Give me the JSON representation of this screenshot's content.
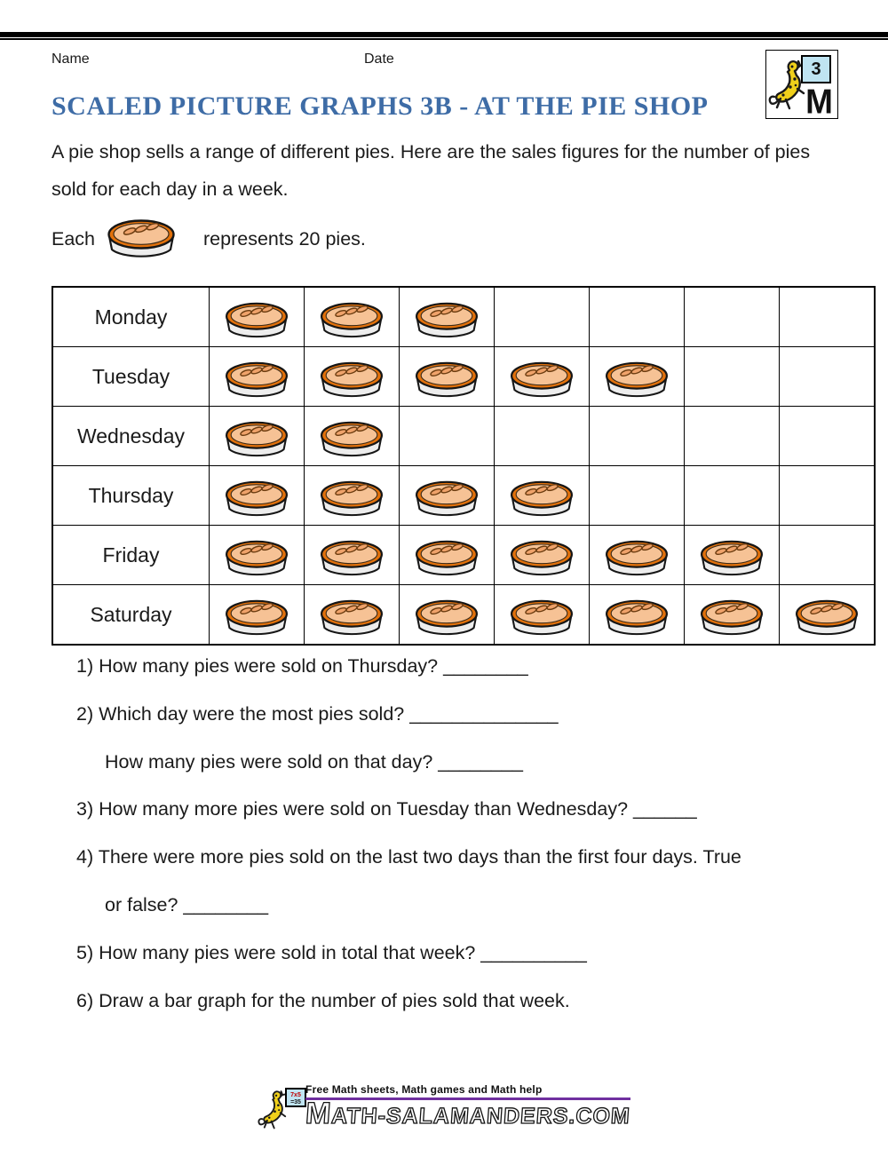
{
  "header": {
    "name_label": "Name",
    "date_label": "Date"
  },
  "logo": {
    "grade": "3",
    "letter": "M"
  },
  "title": "SCALED PICTURE GRAPHS 3B - AT THE PIE SHOP",
  "intro": "A pie shop sells a range of different pies. Here are the sales figures for the number of pies sold for each day in a week.",
  "key": {
    "prefix": "Each",
    "suffix": "represents 20 pies."
  },
  "chart_data": {
    "type": "pictograph",
    "symbol": "pie-icon",
    "symbol_value": 20,
    "columns": 7,
    "categories": [
      "Monday",
      "Tuesday",
      "Wednesday",
      "Thursday",
      "Friday",
      "Saturday"
    ],
    "symbol_counts": [
      3,
      5,
      2,
      4,
      6,
      7
    ],
    "pies_sold": [
      60,
      100,
      40,
      80,
      120,
      140
    ],
    "legend": "Each pie symbol represents 20 pies"
  },
  "questions": [
    {
      "label": "1)",
      "text": "How many pies were sold on Thursday? ________"
    },
    {
      "label": "2)",
      "text": "Which day were the most pies sold? ______________"
    },
    {
      "label": "",
      "text": "How many pies were sold on that day? ________"
    },
    {
      "label": "3)",
      "text": "How many more pies were sold on Tuesday than Wednesday? ______"
    },
    {
      "label": "4)",
      "text": "There were more pies sold on the last two days than the first four days. True or false? ________"
    },
    {
      "label": "5)",
      "text": "How many pies were sold in total that week? __________"
    },
    {
      "label": "6)",
      "text": "Draw a bar graph for the number of pies sold that week."
    }
  ],
  "footer": {
    "tagline": "Free Math sheets, Math games and Math help",
    "wordmark": "MATH-SALAMANDERS.COM",
    "board_line1": "7x5",
    "board_line2": "=35",
    "accent_color": "#7030A0"
  },
  "colors": {
    "title_blue": "#3E6CA6",
    "pie_rim": "#E2710B",
    "pie_fill": "#F6C295",
    "pie_vent": "#EFA26A",
    "pan_gray": "#EDEDED",
    "card_blue": "#BFE4F2"
  }
}
